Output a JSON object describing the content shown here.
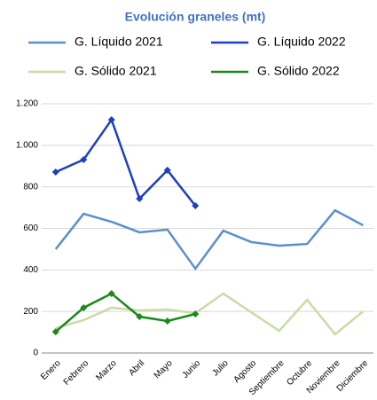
{
  "chart_data": {
    "type": "line",
    "title": "Evolución graneles (mt)",
    "categories": [
      "Enero",
      "Febrero",
      "Marzo",
      "Abril",
      "Mayo",
      "Junio",
      "Julio",
      "Agosto",
      "Septiembre",
      "Octubre",
      "Noviembre",
      "Diciembre"
    ],
    "series": [
      {
        "name": "G. Líquido 2021",
        "color": "#5b8fd0",
        "marker": false,
        "values": [
          500,
          670,
          632,
          581,
          594,
          406,
          589,
          534,
          517,
          525,
          687,
          615
        ]
      },
      {
        "name": "G. Líquido 2022",
        "color": "#1f3fbf",
        "marker": true,
        "values": [
          871,
          931,
          1123,
          743,
          880,
          709,
          null,
          null,
          null,
          null,
          null,
          null
        ]
      },
      {
        "name": "G. Sólido 2021",
        "color": "#c9dca4",
        "marker": false,
        "values": [
          120,
          158,
          218,
          205,
          209,
          192,
          286,
          196,
          107,
          256,
          90,
          200
        ]
      },
      {
        "name": "G. Sólido 2022",
        "color": "#1a8a1a",
        "marker": true,
        "values": [
          102,
          218,
          286,
          175,
          154,
          188,
          null,
          null,
          null,
          null,
          null,
          null
        ]
      }
    ],
    "ylim": [
      0,
      1200
    ],
    "yticks": [
      0,
      200,
      400,
      600,
      800,
      {
        "value": 1000,
        "label": "1.000"
      },
      {
        "value": 1200,
        "label": "1.200"
      }
    ],
    "grid": true
  }
}
